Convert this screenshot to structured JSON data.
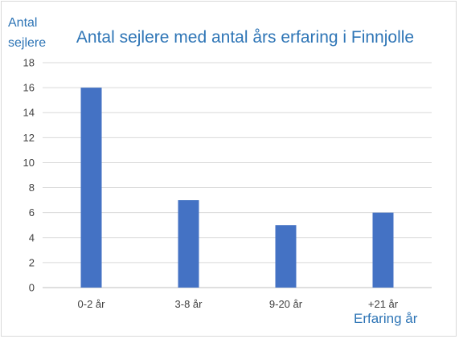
{
  "chart_data": {
    "type": "bar",
    "title": "Antal sejlere med antal års erfaring i Finnjolle",
    "ylabel_lines": [
      "Antal",
      "sejlere"
    ],
    "xlabel": "Erfaring år",
    "categories": [
      "0-2 år",
      "3-8 år",
      "9-20 år",
      "+21 år"
    ],
    "values": [
      16,
      7,
      5,
      6
    ],
    "ylim": [
      0,
      18
    ],
    "yticks": [
      0,
      2,
      4,
      6,
      8,
      10,
      12,
      14,
      16,
      18
    ],
    "grid": true,
    "legend": "none",
    "bar_color": "#4472c4",
    "text_color": "#2e75b6"
  }
}
